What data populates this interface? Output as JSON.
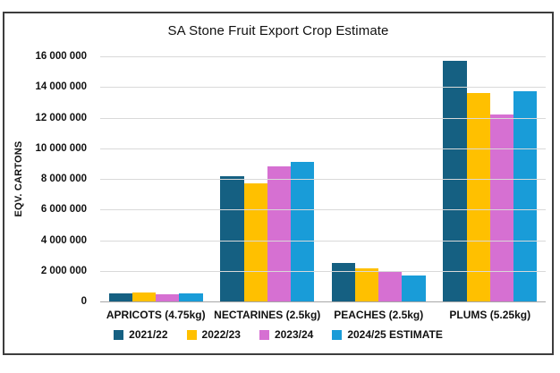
{
  "chart_data": {
    "type": "bar",
    "title": "SA Stone Fruit Export Crop Estimate",
    "ylabel": "EQV. CARTONS",
    "xlabel": "",
    "categories": [
      "APRICOTS (4.75kg)",
      "NECTARINES (2.5kg)",
      "PEACHES (2.5kg)",
      "PLUMS (5.25kg)"
    ],
    "series": [
      {
        "name": "2021/22",
        "color": "#156082",
        "values": [
          550000,
          8200000,
          2500000,
          15700000
        ]
      },
      {
        "name": "2022/23",
        "color": "#FFC000",
        "values": [
          600000,
          7700000,
          2150000,
          13600000
        ]
      },
      {
        "name": "2023/24",
        "color": "#D670D2",
        "values": [
          450000,
          8800000,
          1900000,
          12200000
        ]
      },
      {
        "name": "2024/25 ESTIMATE",
        "color": "#199CD8",
        "values": [
          500000,
          9100000,
          1700000,
          13700000
        ]
      }
    ],
    "ylim": [
      0,
      16000000
    ],
    "ytick_step": 2000000,
    "ytick_labels": [
      "0",
      "2 000 000",
      "4 000 000",
      "6 000 000",
      "8 000 000",
      "10 000 000",
      "12 000 000",
      "14 000 000",
      "16 000 000"
    ],
    "grid": true,
    "legend_position": "bottom",
    "colors": {
      "grid": "#D9D9D9",
      "baseline": "#A6A6A6",
      "frame_border": "#3D3D3D",
      "text": "#111111"
    }
  }
}
